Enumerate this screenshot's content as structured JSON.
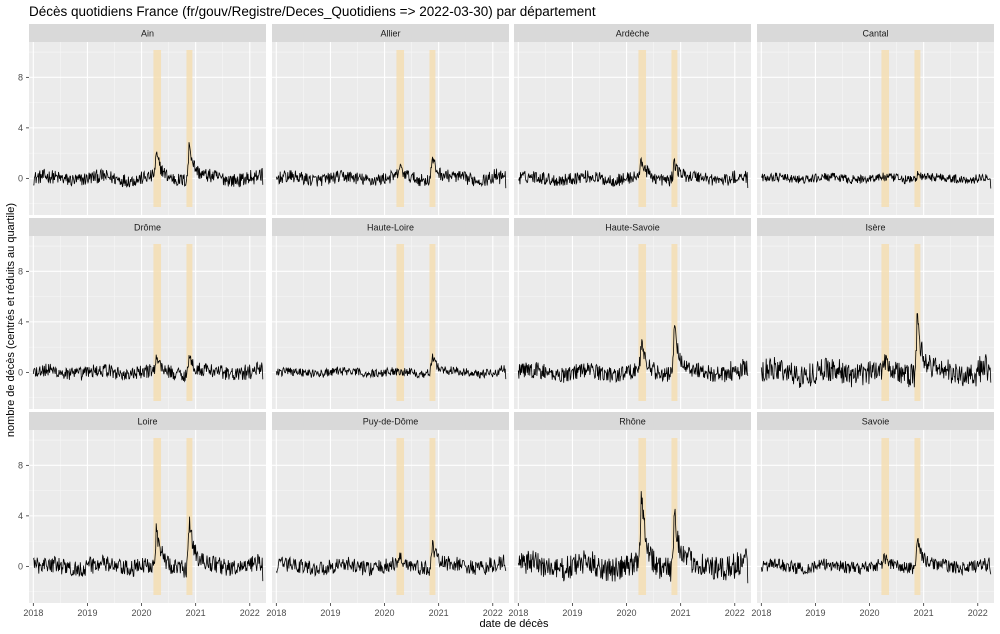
{
  "title": "Décès quotidiens France (fr/gouv/Registre/Deces_Quotidiens => 2022-03-30) par département",
  "chart_data": {
    "type": "line",
    "title": "Décès quotidiens France (fr/gouv/Registre/Deces_Quotidiens => 2022-03-30) par département",
    "xlabel": "date de décès",
    "ylabel": "nombre de décès (centrés et réduits au quartile)",
    "x_range": [
      "2018-01-01",
      "2022-03-30"
    ],
    "xlim": [
      2017.92,
      2022.3
    ],
    "ylim": [
      -2.9,
      10.8
    ],
    "x_ticks": [
      "2018",
      "2019",
      "2020",
      "2021",
      "2022"
    ],
    "y_ticks": [
      0,
      4,
      8
    ],
    "grid": true,
    "highlight_color": "#f5deb3",
    "line_color": "#000000",
    "panel_color": "#ebebeb",
    "strip_color": "#d9d9d9",
    "highlight_bands": [
      {
        "start": 2020.22,
        "end": 2020.36
      },
      {
        "start": 2020.83,
        "end": 2020.94
      }
    ],
    "panels": [
      {
        "name": "Ain",
        "noise": 0.55,
        "peaks": [
          {
            "t": 2020.27,
            "h": 1.8
          },
          {
            "t": 2020.88,
            "h": 3.0
          }
        ]
      },
      {
        "name": "Allier",
        "noise": 0.5,
        "peaks": [
          {
            "t": 2020.27,
            "h": 0.8
          },
          {
            "t": 2020.88,
            "h": 1.8
          }
        ]
      },
      {
        "name": "Ardèche",
        "noise": 0.5,
        "peaks": [
          {
            "t": 2020.27,
            "h": 1.4
          },
          {
            "t": 2020.88,
            "h": 1.5
          }
        ]
      },
      {
        "name": "Cantal",
        "noise": 0.35,
        "peaks": [
          {
            "t": 2020.88,
            "h": 0.4
          }
        ]
      },
      {
        "name": "Drôme",
        "noise": 0.55,
        "peaks": [
          {
            "t": 2020.27,
            "h": 1.0
          },
          {
            "t": 2020.88,
            "h": 1.4
          }
        ]
      },
      {
        "name": "Haute-Loire",
        "noise": 0.35,
        "peaks": [
          {
            "t": 2020.88,
            "h": 1.5
          }
        ]
      },
      {
        "name": "Haute-Savoie",
        "noise": 0.65,
        "peaks": [
          {
            "t": 2020.27,
            "h": 2.2
          },
          {
            "t": 2020.88,
            "h": 4.0
          }
        ]
      },
      {
        "name": "Isère",
        "noise": 0.95,
        "peaks": [
          {
            "t": 2020.27,
            "h": 1.0
          },
          {
            "t": 2020.88,
            "h": 4.6
          }
        ]
      },
      {
        "name": "Loire",
        "noise": 0.7,
        "peaks": [
          {
            "t": 2020.27,
            "h": 2.8
          },
          {
            "t": 2020.88,
            "h": 4.0
          }
        ]
      },
      {
        "name": "Puy-de-Dôme",
        "noise": 0.6,
        "peaks": [
          {
            "t": 2020.27,
            "h": 0.6
          },
          {
            "t": 2020.88,
            "h": 1.9
          }
        ]
      },
      {
        "name": "Rhône",
        "noise": 1.0,
        "peaks": [
          {
            "t": 2020.27,
            "h": 5.8
          },
          {
            "t": 2020.88,
            "h": 5.0
          }
        ]
      },
      {
        "name": "Savoie",
        "noise": 0.5,
        "peaks": [
          {
            "t": 2020.27,
            "h": 0.6
          },
          {
            "t": 2020.88,
            "h": 2.5
          }
        ]
      }
    ]
  }
}
